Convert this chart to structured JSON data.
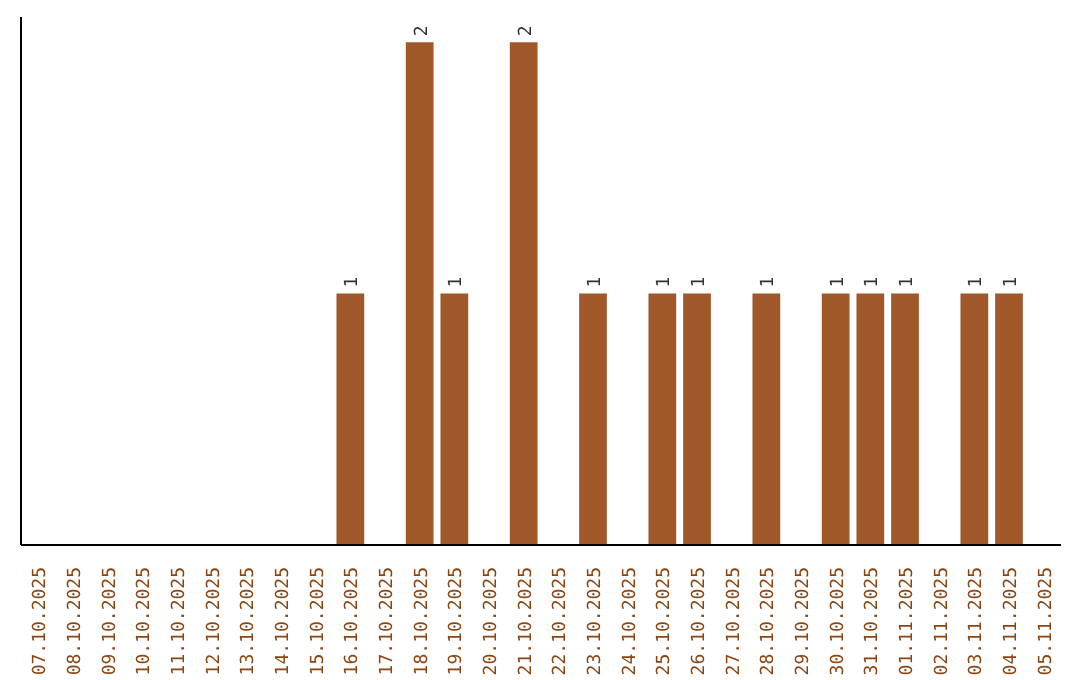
{
  "chart_data": {
    "type": "bar",
    "categories": [
      "07.10.2025",
      "08.10.2025",
      "09.10.2025",
      "10.10.2025",
      "11.10.2025",
      "12.10.2025",
      "13.10.2025",
      "14.10.2025",
      "15.10.2025",
      "16.10.2025",
      "17.10.2025",
      "18.10.2025",
      "19.10.2025",
      "20.10.2025",
      "21.10.2025",
      "22.10.2025",
      "23.10.2025",
      "24.10.2025",
      "25.10.2025",
      "26.10.2025",
      "27.10.2025",
      "28.10.2025",
      "29.10.2025",
      "30.10.2025",
      "31.10.2025",
      "01.11.2025",
      "02.11.2025",
      "03.11.2025",
      "04.11.2025",
      "05.11.2025"
    ],
    "values": [
      0,
      0,
      0,
      0,
      0,
      0,
      0,
      0,
      0,
      1,
      0,
      2,
      1,
      0,
      2,
      0,
      1,
      0,
      1,
      1,
      0,
      1,
      0,
      1,
      1,
      1,
      0,
      1,
      1,
      0
    ],
    "value_labels": [
      null,
      null,
      null,
      null,
      null,
      null,
      null,
      null,
      null,
      "1",
      null,
      "2",
      "1",
      null,
      "2",
      null,
      "1",
      null,
      "1",
      "1",
      null,
      "1",
      null,
      "1",
      "1",
      "1",
      null,
      "1",
      "1",
      null
    ],
    "color": "#a0582a",
    "ylim": [
      0,
      2.1
    ],
    "tick_labels": "x",
    "grid": false
  }
}
